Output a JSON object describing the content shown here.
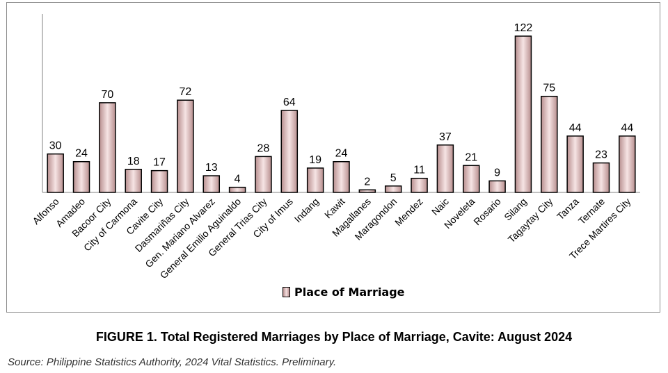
{
  "chart_data": {
    "type": "bar",
    "categories": [
      "Alfonso",
      "Amadeo",
      "Bacoor City",
      "City of Carmona",
      "Cavite City",
      "Dasmariñas City",
      "Gen. Mariano Alvarez",
      "General Emilio Aguinaldo",
      "General Trias City",
      "City of Imus",
      "Indang",
      "Kawit",
      "Magallanes",
      "Maragondon",
      "Mendez",
      "Naic",
      "Noveleta",
      "Rosario",
      "Silang",
      "Tagaytay City",
      "Tanza",
      "Ternate",
      "Trece Martires City"
    ],
    "series": [
      {
        "name": "Place of Marriage",
        "values": [
          30,
          24,
          70,
          18,
          17,
          72,
          13,
          4,
          28,
          64,
          19,
          24,
          2,
          5,
          11,
          37,
          21,
          9,
          122,
          75,
          44,
          23,
          44
        ]
      }
    ],
    "ylim": [
      0,
      122
    ],
    "grid": false,
    "legend_position": "bottom",
    "bar_color": "#efd6d6",
    "bar_edge_color": "#b88f8f"
  },
  "caption": "FIGURE 1. Total Registered Marriages by Place of Marriage, Cavite: August 2024",
  "source": "Source: Philippine Statistics Authority, 2024 Vital Statistics. Preliminary."
}
